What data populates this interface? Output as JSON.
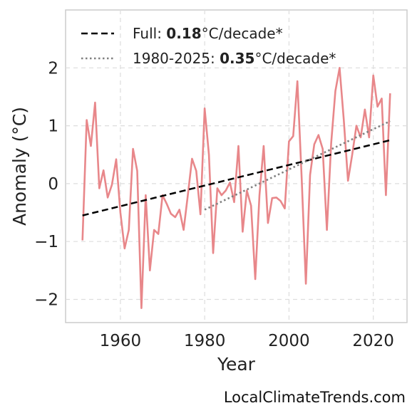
{
  "chart_data": {
    "type": "line",
    "xlabel": "Year",
    "ylabel": "Anomaly (°C)",
    "xlim": [
      1947,
      2028
    ],
    "ylim": [
      -2.4,
      3.0
    ],
    "x_ticks": [
      1960,
      1980,
      2000,
      2020
    ],
    "x_tick_labels": [
      "1960",
      "1980",
      "2000",
      "2020"
    ],
    "y_ticks": [
      -2,
      -1,
      0,
      1,
      2
    ],
    "y_tick_labels": [
      "−2",
      "−1",
      "0",
      "1",
      "2"
    ],
    "grid": true,
    "legend_position": "top-left",
    "series": [
      {
        "style": "solid",
        "color": "#e8878a",
        "x": [
          1951,
          1952,
          1953,
          1954,
          1955,
          1956,
          1957,
          1958,
          1959,
          1960,
          1961,
          1962,
          1963,
          1964,
          1965,
          1966,
          1967,
          1968,
          1969,
          1970,
          1971,
          1972,
          1973,
          1974,
          1975,
          1976,
          1977,
          1978,
          1979,
          1980,
          1981,
          1982,
          1983,
          1984,
          1985,
          1986,
          1987,
          1988,
          1989,
          1990,
          1991,
          1992,
          1993,
          1994,
          1995,
          1996,
          1997,
          1998,
          1999,
          2000,
          2001,
          2002,
          2003,
          2004,
          2005,
          2006,
          2007,
          2008,
          2009,
          2010,
          2011,
          2012,
          2013,
          2014,
          2015,
          2016,
          2017,
          2018,
          2019,
          2020,
          2021,
          2022,
          2023,
          2024
        ],
        "y": [
          -0.98,
          1.1,
          0.65,
          1.4,
          -0.08,
          0.23,
          -0.24,
          -0.02,
          0.42,
          -0.5,
          -1.12,
          -0.8,
          0.6,
          0.22,
          -2.15,
          -0.2,
          -1.5,
          -0.8,
          -0.87,
          -0.2,
          -0.35,
          -0.52,
          -0.58,
          -0.45,
          -0.8,
          -0.2,
          0.43,
          0.22,
          -0.53,
          1.3,
          0.5,
          -1.2,
          -0.08,
          -0.2,
          -0.12,
          0.02,
          -0.32,
          0.65,
          -0.83,
          -0.12,
          -0.38,
          -1.65,
          -0.2,
          0.65,
          -0.68,
          -0.25,
          -0.24,
          -0.3,
          -0.43,
          0.73,
          0.82,
          1.77,
          0.1,
          -1.73,
          0.15,
          0.68,
          0.84,
          0.6,
          -0.8,
          0.7,
          1.6,
          2.0,
          1.1,
          0.05,
          0.5,
          1.0,
          0.8,
          1.28,
          0.8,
          1.87,
          1.33,
          1.47,
          -0.2,
          1.56
        ]
      },
      {
        "style": "dashed",
        "color": "#000000",
        "x": [
          1951,
          2024
        ],
        "y": [
          -0.55,
          0.75
        ]
      },
      {
        "style": "dotted",
        "color": "#808080",
        "x": [
          1980,
          2024
        ],
        "y": [
          -0.45,
          1.08
        ]
      }
    ],
    "legend": [
      {
        "prefix": "Full: ",
        "bold": "0.18",
        "suffix": "°C/decade*",
        "style": "dashed",
        "color": "#000000"
      },
      {
        "prefix": "1980-2025: ",
        "bold": "0.35",
        "suffix": "°C/decade*",
        "style": "dotted",
        "color": "#808080"
      }
    ]
  },
  "credit": "LocalClimateTrends.com"
}
